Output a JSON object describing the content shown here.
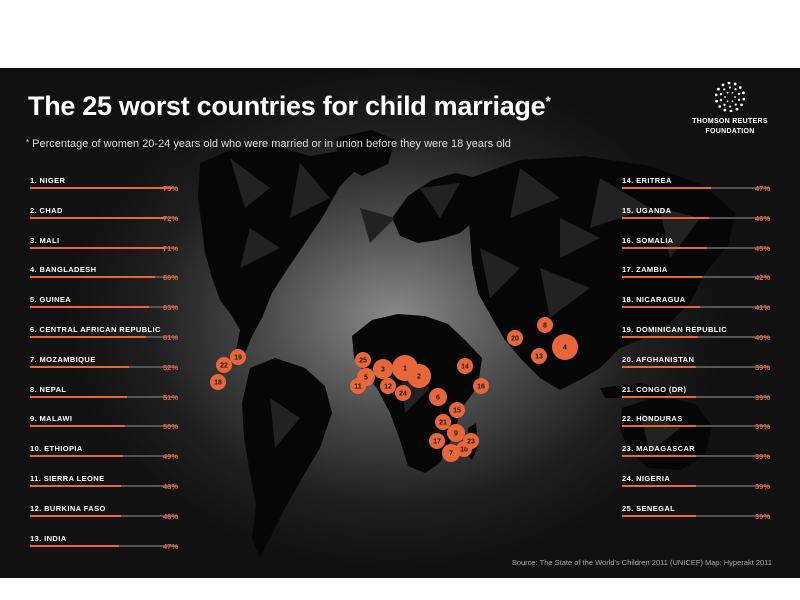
{
  "title": "The 25 worst countries for child marriage",
  "title_mark": "*",
  "subtitle_mark": "*",
  "subtitle": "Percentage of women 20-24 years old who were married or in union before they were 18 years old",
  "logo": {
    "icon": "thomson-reuters-dots-icon",
    "line1": "THOMSON REUTERS",
    "line2": "FOUNDATION"
  },
  "source": "Source: The State of the World's Children 2011 (UNICEF)  Map: Hyperakt 2011",
  "colors": {
    "accent": "#e8673a",
    "text": "#ffffff",
    "track": "#555555"
  },
  "chart_data": {
    "type": "bar",
    "value_unit": "%",
    "xlim": [
      0,
      100
    ],
    "categories": [
      "1. NIGER",
      "2. CHAD",
      "3. MALI",
      "4. BANGLADESH",
      "5. GUINEA",
      "6. CENTRAL AFRICAN REPUBLIC",
      "7. MOZAMBIQUE",
      "8. NEPAL",
      "9. MALAWI",
      "10. ETHIOPIA",
      "11. SIERRA LEONE",
      "12. BURKINA FASO",
      "13. INDIA",
      "14. ERITREA",
      "15. UGANDA",
      "16. SOMALIA",
      "17. ZAMBIA",
      "18. NICARAGUA",
      "19. DOMINICAN REPUBLIC",
      "20. AFGHANISTAN",
      "21. CONGO (DR)",
      "22. HONDURAS",
      "23. MADAGASCAR",
      "24. NIGERIA",
      "25. SENEGAL"
    ],
    "values": [
      75,
      72,
      71,
      66,
      63,
      61,
      52,
      51,
      50,
      49,
      48,
      48,
      47,
      47,
      46,
      45,
      42,
      41,
      40,
      39,
      39,
      39,
      39,
      39,
      39
    ],
    "labels": [
      "75%",
      "72%",
      "71%",
      "66%",
      "63%",
      "61%",
      "52%",
      "51%",
      "50%",
      "49%",
      "48%",
      "48%",
      "47%",
      "47%",
      "46%",
      "45%",
      "42%",
      "41%",
      "40%",
      "39%",
      "39%",
      "39%",
      "39%",
      "39%",
      "39%"
    ],
    "map_markers": [
      "1",
      "2",
      "3",
      "4",
      "5",
      "6",
      "7",
      "8",
      "9",
      "10",
      "11",
      "12",
      "13",
      "14",
      "15",
      "16",
      "17",
      "18",
      "19",
      "20",
      "21",
      "22",
      "23",
      "24",
      "25"
    ]
  }
}
